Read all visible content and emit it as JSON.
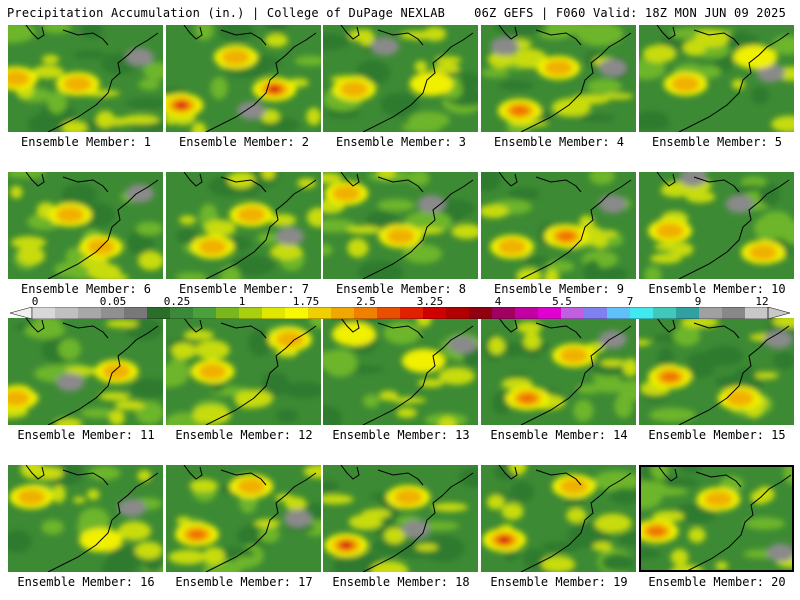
{
  "header": {
    "title": "Precipitation Accumulation (in.) | College of DuPage NEXLAB",
    "run_info": "06Z GEFS | F060 Valid: 18Z MON JUN 09 2025"
  },
  "panels": [
    {
      "label": "Ensemble Member: 1",
      "hotspots": [
        [
          0.05,
          0.5,
          0.35
        ],
        [
          0.45,
          0.55,
          0.35
        ]
      ],
      "gray": [
        [
          0.85,
          0.3
        ]
      ]
    },
    {
      "label": "Ensemble Member: 2",
      "hotspots": [
        [
          0.1,
          0.75,
          0.9
        ],
        [
          0.7,
          0.6,
          1
        ],
        [
          0.45,
          0.3,
          0.4
        ]
      ],
      "gray": [
        [
          0.55,
          0.8
        ]
      ]
    },
    {
      "label": "Ensemble Member: 3",
      "hotspots": [
        [
          0.2,
          0.6,
          0.4
        ],
        [
          0.7,
          0.55,
          0.3
        ]
      ],
      "gray": [
        [
          0.4,
          0.2
        ]
      ]
    },
    {
      "label": "Ensemble Member: 4",
      "hotspots": [
        [
          0.25,
          0.8,
          0.6
        ],
        [
          0.5,
          0.4,
          0.35
        ]
      ],
      "gray": [
        [
          0.85,
          0.4
        ],
        [
          0.15,
          0.2
        ]
      ]
    },
    {
      "label": "Ensemble Member: 5",
      "hotspots": [
        [
          0.3,
          0.55,
          0.35
        ],
        [
          0.75,
          0.3,
          0.3
        ]
      ],
      "gray": [
        [
          0.85,
          0.45
        ]
      ]
    },
    {
      "label": "Ensemble Member: 6",
      "hotspots": [
        [
          0.4,
          0.4,
          0.5
        ],
        [
          0.6,
          0.7,
          0.45
        ]
      ],
      "gray": [
        [
          0.85,
          0.2
        ]
      ]
    },
    {
      "label": "Ensemble Member: 7",
      "hotspots": [
        [
          0.55,
          0.4,
          0.5
        ],
        [
          0.3,
          0.7,
          0.4
        ]
      ],
      "gray": [
        [
          0.8,
          0.6
        ]
      ]
    },
    {
      "label": "Ensemble Member: 8",
      "hotspots": [
        [
          0.15,
          0.2,
          0.55
        ],
        [
          0.5,
          0.6,
          0.4
        ]
      ],
      "gray": [
        [
          0.7,
          0.3
        ]
      ]
    },
    {
      "label": "Ensemble Member: 9",
      "hotspots": [
        [
          0.55,
          0.6,
          0.7
        ],
        [
          0.2,
          0.7,
          0.4
        ]
      ],
      "gray": [
        [
          0.85,
          0.3
        ]
      ]
    },
    {
      "label": "Ensemble Member: 10",
      "hotspots": [
        [
          0.2,
          0.55,
          0.35
        ],
        [
          0.8,
          0.75,
          0.35
        ]
      ],
      "gray": [
        [
          0.35,
          0.05
        ],
        [
          0.65,
          0.3
        ]
      ]
    },
    {
      "label": "Ensemble Member: 11",
      "hotspots": [
        [
          0.05,
          0.75,
          0.5
        ],
        [
          0.7,
          0.5,
          0.55
        ]
      ],
      "gray": [
        [
          0.4,
          0.6
        ]
      ]
    },
    {
      "label": "Ensemble Member: 12",
      "hotspots": [
        [
          0.3,
          0.5,
          0.45
        ],
        [
          0.8,
          0.2,
          0.4
        ]
      ],
      "gray": []
    },
    {
      "label": "Ensemble Member: 13",
      "hotspots": [
        [
          0.2,
          0.15,
          0.3
        ],
        [
          0.65,
          0.4,
          0.3
        ]
      ],
      "gray": [
        [
          0.9,
          0.25
        ]
      ]
    },
    {
      "label": "Ensemble Member: 14",
      "hotspots": [
        [
          0.3,
          0.75,
          0.65
        ],
        [
          0.6,
          0.35,
          0.4
        ]
      ],
      "gray": [
        [
          0.85,
          0.2
        ]
      ]
    },
    {
      "label": "Ensemble Member: 15",
      "hotspots": [
        [
          0.2,
          0.55,
          0.6
        ],
        [
          0.65,
          0.75,
          0.4
        ]
      ],
      "gray": [
        [
          0.9,
          0.2
        ]
      ]
    },
    {
      "label": "Ensemble Member: 16",
      "hotspots": [
        [
          0.15,
          0.3,
          0.35
        ],
        [
          0.6,
          0.7,
          0.3
        ]
      ],
      "gray": [
        [
          0.8,
          0.4
        ]
      ]
    },
    {
      "label": "Ensemble Member: 17",
      "hotspots": [
        [
          0.2,
          0.65,
          0.6
        ],
        [
          0.55,
          0.2,
          0.4
        ]
      ],
      "gray": [
        [
          0.85,
          0.5
        ]
      ]
    },
    {
      "label": "Ensemble Member: 18",
      "hotspots": [
        [
          0.15,
          0.75,
          0.85
        ],
        [
          0.55,
          0.3,
          0.4
        ]
      ],
      "gray": [
        [
          0.6,
          0.6
        ]
      ]
    },
    {
      "label": "Ensemble Member: 19",
      "hotspots": [
        [
          0.15,
          0.7,
          0.95
        ],
        [
          0.6,
          0.2,
          0.45
        ]
      ],
      "gray": []
    },
    {
      "label": "Ensemble Member: 20",
      "hotspots": [
        [
          0.1,
          0.6,
          0.6
        ],
        [
          0.5,
          0.3,
          0.45
        ]
      ],
      "gray": [
        [
          0.9,
          0.8
        ]
      ]
    }
  ],
  "colorbar": {
    "tick_labels": [
      "0",
      "0.05",
      "0.25",
      "1",
      "1.75",
      "2.5",
      "3.25",
      "4",
      "5.5",
      "7",
      "9",
      "12"
    ],
    "colors": [
      "#d8d8d8",
      "#c0c0c0",
      "#a8a8a8",
      "#909090",
      "#787878",
      "#2a6e2a",
      "#3a8a3a",
      "#4aa03a",
      "#78b81e",
      "#a8d010",
      "#e0e800",
      "#f8f800",
      "#f0d000",
      "#f0a800",
      "#f08000",
      "#e85000",
      "#e02000",
      "#d00000",
      "#b00000",
      "#900010",
      "#a00060",
      "#c000a0",
      "#e000d0",
      "#c060e0",
      "#8080f0",
      "#60c0f8",
      "#40e8f0",
      "#40c8b8",
      "#30a0a0",
      "#a0a0a0",
      "#888888",
      "#c8c8c8"
    ]
  }
}
